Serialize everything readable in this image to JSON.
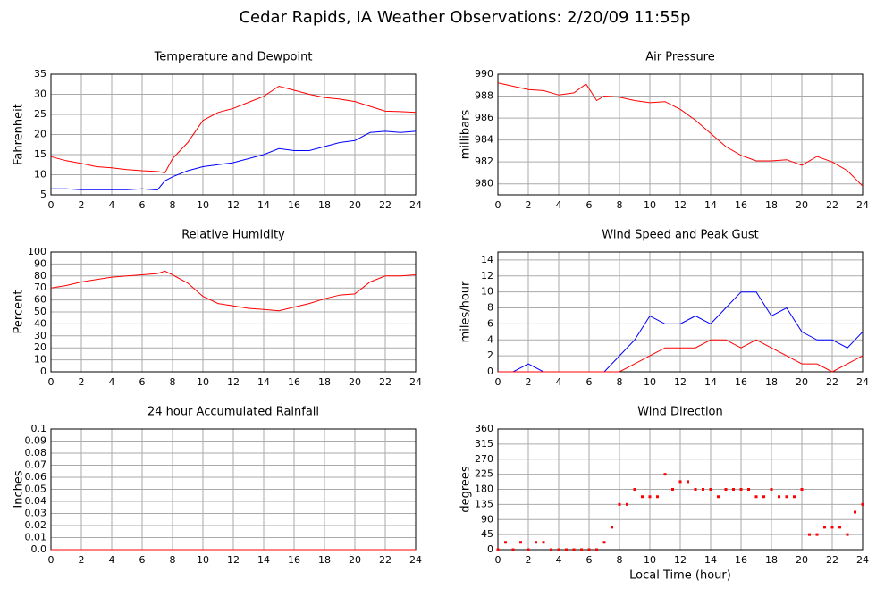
{
  "title": "Cedar Rapids, IA Weather Observations: 2/20/09 11:55p",
  "chart_data": [
    {
      "type": "line",
      "title": "Temperature and Dewpoint",
      "ylabel": "Fahrenheit",
      "x": [
        0,
        1,
        2,
        3,
        4,
        5,
        6,
        7,
        7.5,
        8,
        9,
        10,
        11,
        12,
        13,
        14,
        15,
        16,
        17,
        18,
        19,
        20,
        21,
        22,
        23,
        24
      ],
      "series": [
        {
          "color": "#ff0000",
          "values": [
            14.5,
            13.5,
            12.8,
            12,
            11.7,
            11.3,
            11,
            10.8,
            10.5,
            14,
            18,
            23.5,
            25.5,
            26.5,
            28,
            29.5,
            32,
            31,
            30,
            29.2,
            28.8,
            28.2,
            27,
            25.8,
            25.7,
            25.5
          ]
        },
        {
          "color": "#0000ff",
          "values": [
            6.5,
            6.5,
            6.3,
            6.3,
            6.3,
            6.3,
            6.5,
            6.2,
            8.5,
            9.5,
            11,
            12,
            12.5,
            13,
            14,
            15,
            16.5,
            16,
            16,
            17,
            18,
            18.5,
            20.5,
            20.8,
            20.5,
            20.8
          ]
        }
      ],
      "xlim": [
        0,
        24
      ],
      "xticks": [
        0,
        2,
        4,
        6,
        8,
        10,
        12,
        14,
        16,
        18,
        20,
        22,
        24
      ],
      "ylim": [
        5,
        35
      ],
      "yticks": [
        5,
        10,
        15,
        20,
        25,
        30,
        35
      ],
      "grid": true
    },
    {
      "type": "line",
      "title": "Air Pressure",
      "ylabel": "millibars",
      "x": [
        0,
        1,
        2,
        3,
        4,
        5,
        5.8,
        6.5,
        7,
        8,
        9,
        10,
        11,
        12,
        13,
        14,
        15,
        16,
        17,
        18,
        19,
        20,
        21,
        22,
        23,
        24
      ],
      "series": [
        {
          "color": "#ff0000",
          "values": [
            989.2,
            988.9,
            988.6,
            988.5,
            988.1,
            988.3,
            989.1,
            987.6,
            988.0,
            987.9,
            987.6,
            987.4,
            987.5,
            986.8,
            985.8,
            984.6,
            983.4,
            982.6,
            982.1,
            982.1,
            982.2,
            981.7,
            982.5,
            982.0,
            981.2,
            979.8
          ]
        }
      ],
      "xlim": [
        0,
        24
      ],
      "xticks": [
        0,
        2,
        4,
        6,
        8,
        10,
        12,
        14,
        16,
        18,
        20,
        22,
        24
      ],
      "ylim": [
        979,
        990
      ],
      "yticks": [
        980,
        982,
        984,
        986,
        988,
        990
      ],
      "grid": true
    },
    {
      "type": "line",
      "title": "Relative Humidity",
      "ylabel": "Percent",
      "x": [
        0,
        1,
        2,
        3,
        4,
        5,
        6,
        7,
        7.5,
        8,
        9,
        10,
        11,
        12,
        13,
        14,
        15,
        16,
        17,
        18,
        19,
        20,
        21,
        22,
        23,
        24
      ],
      "series": [
        {
          "color": "#ff0000",
          "values": [
            70,
            72,
            75,
            77,
            79,
            80,
            81,
            82,
            84,
            81,
            74,
            63,
            57,
            55,
            53,
            52,
            51,
            54,
            57,
            61,
            64,
            65,
            75,
            80,
            80,
            81
          ]
        }
      ],
      "xlim": [
        0,
        24
      ],
      "xticks": [
        0,
        2,
        4,
        6,
        8,
        10,
        12,
        14,
        16,
        18,
        20,
        22,
        24
      ],
      "ylim": [
        0,
        100
      ],
      "yticks": [
        0,
        10,
        20,
        30,
        40,
        50,
        60,
        70,
        80,
        90,
        100
      ],
      "grid": true
    },
    {
      "type": "line",
      "title": "Wind Speed and Peak Gust",
      "ylabel": "miles/hour",
      "x": [
        0,
        1,
        2,
        3,
        4,
        5,
        6,
        7,
        8,
        9,
        10,
        11,
        12,
        13,
        14,
        15,
        16,
        17,
        18,
        19,
        20,
        21,
        22,
        23,
        24
      ],
      "series": [
        {
          "color": "#0000ff",
          "values": [
            0,
            0,
            1,
            0,
            0,
            0,
            0,
            0,
            2,
            4,
            7,
            6,
            6,
            7,
            6,
            8,
            10,
            10,
            7,
            8,
            5,
            4,
            4,
            3,
            5
          ]
        },
        {
          "color": "#ff0000",
          "values": [
            0,
            0,
            0,
            0,
            0,
            0,
            0,
            0,
            0,
            1,
            2,
            3,
            3,
            3,
            4,
            4,
            3,
            4,
            3,
            2,
            1,
            1,
            0,
            1,
            2
          ]
        }
      ],
      "xlim": [
        0,
        24
      ],
      "xticks": [
        0,
        2,
        4,
        6,
        8,
        10,
        12,
        14,
        16,
        18,
        20,
        22,
        24
      ],
      "ylim": [
        0,
        15
      ],
      "yticks": [
        0,
        2,
        4,
        6,
        8,
        10,
        12,
        14
      ],
      "grid": true
    },
    {
      "type": "line",
      "title": "24 hour Accumulated Rainfall",
      "ylabel": "Inches",
      "x": [
        0,
        24
      ],
      "series": [
        {
          "color": "#ff0000",
          "values": [
            0,
            0
          ]
        }
      ],
      "xlim": [
        0,
        24
      ],
      "xticks": [
        0,
        2,
        4,
        6,
        8,
        10,
        12,
        14,
        16,
        18,
        20,
        22,
        24
      ],
      "ylim": [
        0,
        0.1
      ],
      "yticks": [
        {
          "value": 0,
          "label": "0.0"
        },
        0.01,
        0.02,
        0.03,
        0.04,
        0.05,
        0.06,
        0.07,
        0.08,
        0.09,
        0.1
      ],
      "grid": true
    },
    {
      "type": "scatter",
      "title": "Wind Direction",
      "ylabel": "degrees",
      "xlabel": "Local Time (hour)",
      "x": [
        0,
        0.5,
        1,
        1.5,
        2,
        2.5,
        3,
        3.5,
        4,
        4.5,
        5,
        5.5,
        6,
        6.5,
        7,
        7.5,
        8,
        8.5,
        9,
        9.5,
        10,
        10.5,
        11,
        11.5,
        12,
        12.5,
        13,
        13.5,
        14,
        14.5,
        15,
        15.5,
        16,
        16.5,
        17,
        17.5,
        18,
        18.5,
        19,
        19.5,
        20,
        20.5,
        21,
        21.5,
        22,
        22.5,
        23,
        23.5,
        24
      ],
      "series": [
        {
          "color": "#ff0000",
          "values": [
            0,
            22,
            0,
            22,
            0,
            22,
            22,
            0,
            0,
            0,
            0,
            0,
            0,
            0,
            22,
            67,
            135,
            135,
            180,
            158,
            158,
            158,
            225,
            180,
            203,
            203,
            180,
            180,
            180,
            158,
            180,
            180,
            180,
            180,
            158,
            158,
            180,
            158,
            158,
            158,
            180,
            45,
            45,
            67,
            67,
            67,
            45,
            112,
            135
          ]
        }
      ],
      "xlim": [
        0,
        24
      ],
      "xticks": [
        0,
        2,
        4,
        6,
        8,
        10,
        12,
        14,
        16,
        18,
        20,
        22,
        24
      ],
      "ylim": [
        0,
        360
      ],
      "yticks": [
        0,
        45,
        90,
        135,
        180,
        225,
        270,
        315,
        360
      ],
      "grid": true
    }
  ]
}
